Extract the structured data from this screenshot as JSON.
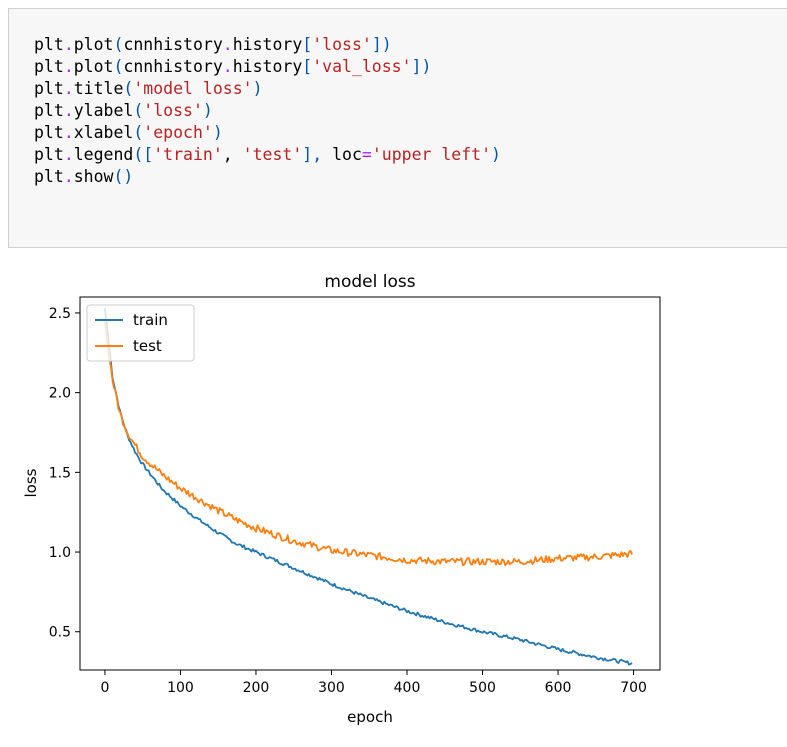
{
  "code_cell": {
    "lines": [
      [
        {
          "t": "plt",
          "k": "n"
        },
        {
          "t": ".",
          "k": "op"
        },
        {
          "t": "plot",
          "k": "n"
        },
        {
          "t": "(",
          "k": "p"
        },
        {
          "t": "cnnhistory",
          "k": "n"
        },
        {
          "t": ".",
          "k": "op"
        },
        {
          "t": "history",
          "k": "n"
        },
        {
          "t": "[",
          "k": "p"
        },
        {
          "t": "'loss'",
          "k": "str"
        },
        {
          "t": "])",
          "k": "p"
        }
      ],
      [
        {
          "t": "plt",
          "k": "n"
        },
        {
          "t": ".",
          "k": "op"
        },
        {
          "t": "plot",
          "k": "n"
        },
        {
          "t": "(",
          "k": "p"
        },
        {
          "t": "cnnhistory",
          "k": "n"
        },
        {
          "t": ".",
          "k": "op"
        },
        {
          "t": "history",
          "k": "n"
        },
        {
          "t": "[",
          "k": "p"
        },
        {
          "t": "'val_loss'",
          "k": "str"
        },
        {
          "t": "])",
          "k": "p"
        }
      ],
      [
        {
          "t": "plt",
          "k": "n"
        },
        {
          "t": ".",
          "k": "op"
        },
        {
          "t": "title",
          "k": "n"
        },
        {
          "t": "(",
          "k": "p"
        },
        {
          "t": "'model loss'",
          "k": "str"
        },
        {
          "t": ")",
          "k": "p"
        }
      ],
      [
        {
          "t": "plt",
          "k": "n"
        },
        {
          "t": ".",
          "k": "op"
        },
        {
          "t": "ylabel",
          "k": "n"
        },
        {
          "t": "(",
          "k": "p"
        },
        {
          "t": "'loss'",
          "k": "str"
        },
        {
          "t": ")",
          "k": "p"
        }
      ],
      [
        {
          "t": "plt",
          "k": "n"
        },
        {
          "t": ".",
          "k": "op"
        },
        {
          "t": "xlabel",
          "k": "n"
        },
        {
          "t": "(",
          "k": "p"
        },
        {
          "t": "'epoch'",
          "k": "str"
        },
        {
          "t": ")",
          "k": "p"
        }
      ],
      [
        {
          "t": "plt",
          "k": "n"
        },
        {
          "t": ".",
          "k": "op"
        },
        {
          "t": "legend",
          "k": "n"
        },
        {
          "t": "([",
          "k": "p"
        },
        {
          "t": "'train'",
          "k": "str"
        },
        {
          "t": ", ",
          "k": "n"
        },
        {
          "t": "'test'",
          "k": "str"
        },
        {
          "t": "], ",
          "k": "p"
        },
        {
          "t": "loc",
          "k": "n"
        },
        {
          "t": "=",
          "k": "op"
        },
        {
          "t": "'upper left'",
          "k": "str"
        },
        {
          "t": ")",
          "k": "p"
        }
      ],
      [
        {
          "t": "plt",
          "k": "n"
        },
        {
          "t": ".",
          "k": "op"
        },
        {
          "t": "show",
          "k": "n"
        },
        {
          "t": "()",
          "k": "p"
        }
      ]
    ]
  },
  "colors": {
    "train": "#1f77b4",
    "test": "#ff7f0e",
    "code_string": "#ba2121",
    "code_operator": "#aa22ff",
    "code_paren": "#0055aa",
    "cell_background": "#f7f7f7"
  },
  "chart_data": {
    "type": "line",
    "title": "model loss",
    "xlabel": "epoch",
    "ylabel": "loss",
    "xlim": [
      -33,
      735
    ],
    "ylim": [
      0.26,
      2.6
    ],
    "xticks": [
      "0",
      "100",
      "200",
      "300",
      "400",
      "500",
      "600",
      "700"
    ],
    "yticks": [
      "0.5",
      "1.0",
      "1.5",
      "2.0",
      "2.5"
    ],
    "legend": {
      "loc": "upper left",
      "entries": [
        "train",
        "test"
      ]
    },
    "grid": false,
    "series": [
      {
        "name": "train",
        "x": [
          0,
          10,
          20,
          30,
          40,
          50,
          75,
          100,
          125,
          150,
          175,
          200,
          250,
          300,
          350,
          400,
          450,
          500,
          550,
          600,
          650,
          699
        ],
        "y": [
          2.53,
          2.1,
          1.88,
          1.73,
          1.63,
          1.55,
          1.4,
          1.29,
          1.2,
          1.12,
          1.05,
          1.0,
          0.9,
          0.8,
          0.71,
          0.63,
          0.56,
          0.5,
          0.45,
          0.39,
          0.34,
          0.3
        ]
      },
      {
        "name": "test",
        "x": [
          0,
          10,
          20,
          30,
          40,
          50,
          75,
          100,
          125,
          150,
          175,
          200,
          250,
          300,
          350,
          400,
          450,
          500,
          550,
          600,
          650,
          699
        ],
        "y": [
          2.45,
          2.08,
          1.87,
          1.75,
          1.67,
          1.6,
          1.49,
          1.4,
          1.33,
          1.26,
          1.2,
          1.15,
          1.07,
          1.01,
          0.98,
          0.95,
          0.94,
          0.94,
          0.94,
          0.96,
          0.97,
          0.99
        ]
      }
    ]
  }
}
